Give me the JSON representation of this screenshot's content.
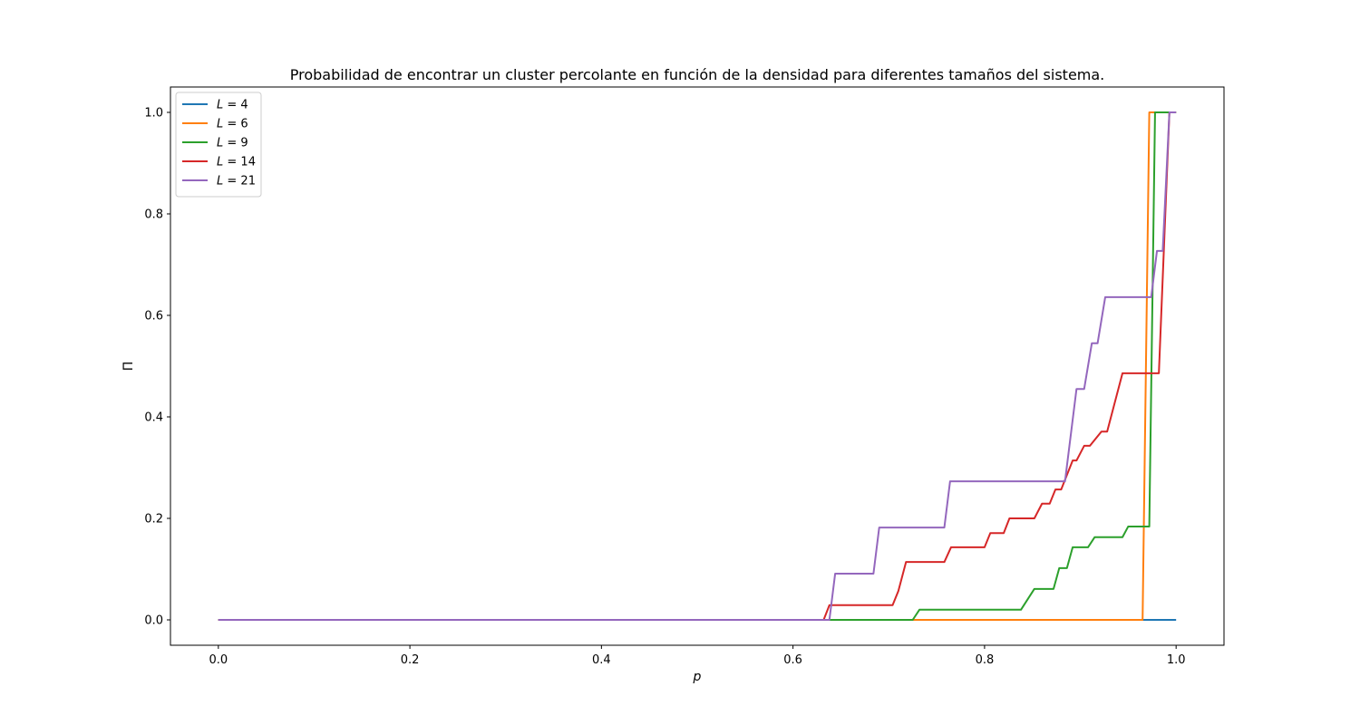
{
  "chart_data": {
    "type": "line",
    "title": "Probabilidad de encontrar un cluster percolante en función de la densidad para diferentes tamaños del sistema.",
    "xlabel": "p",
    "ylabel": "Π",
    "xlim": [
      -0.05,
      1.05
    ],
    "ylim": [
      -0.05,
      1.05
    ],
    "xticks": [
      0.0,
      0.2,
      0.4,
      0.6,
      0.8,
      1.0
    ],
    "xtick_labels": [
      "0.0",
      "0.2",
      "0.4",
      "0.6",
      "0.8",
      "1.0"
    ],
    "yticks": [
      0.0,
      0.2,
      0.4,
      0.6,
      0.8,
      1.0
    ],
    "ytick_labels": [
      "0.0",
      "0.2",
      "0.4",
      "0.6",
      "0.8",
      "1.0"
    ],
    "grid": false,
    "legend_position": "top-left",
    "series": [
      {
        "name": "L = 4",
        "label_var": "L",
        "label_num": "4",
        "color": "#1f77b4",
        "x": [
          0.0,
          1.0
        ],
        "y": [
          0.0,
          0.0
        ]
      },
      {
        "name": "L = 6",
        "label_var": "L",
        "label_num": "6",
        "color": "#ff7f0e",
        "x": [
          0.0,
          0.965,
          0.972,
          1.0
        ],
        "y": [
          0.0,
          0.0,
          1.0,
          1.0
        ]
      },
      {
        "name": "L = 9",
        "label_var": "L",
        "label_num": "9",
        "color": "#2ca02c",
        "x": [
          0.0,
          0.725,
          0.732,
          0.838,
          0.852,
          0.872,
          0.878,
          0.886,
          0.892,
          0.908,
          0.915,
          0.944,
          0.95,
          0.965,
          0.972,
          0.978,
          1.0
        ],
        "y": [
          0.0,
          0.0,
          0.02,
          0.02,
          0.061,
          0.061,
          0.102,
          0.102,
          0.143,
          0.143,
          0.163,
          0.163,
          0.184,
          0.184,
          0.184,
          1.0,
          1.0
        ],
        "color_note": ""
      },
      {
        "name": "L = 14",
        "label_var": "L",
        "label_num": "14",
        "color": "#d62728",
        "x": [
          0.0,
          0.632,
          0.638,
          0.704,
          0.71,
          0.718,
          0.758,
          0.765,
          0.8,
          0.806,
          0.82,
          0.826,
          0.836,
          0.852,
          0.86,
          0.868,
          0.874,
          0.88,
          0.892,
          0.896,
          0.904,
          0.91,
          0.922,
          0.928,
          0.944,
          0.954,
          0.982,
          0.993
        ],
        "y": [
          0.0,
          0.0,
          0.029,
          0.029,
          0.057,
          0.114,
          0.114,
          0.143,
          0.143,
          0.171,
          0.171,
          0.2,
          0.2,
          0.2,
          0.229,
          0.229,
          0.257,
          0.257,
          0.314,
          0.314,
          0.343,
          0.343,
          0.371,
          0.371,
          0.486,
          0.486,
          0.486,
          1.0
        ]
      },
      {
        "name": "L = 21",
        "label_var": "L",
        "label_num": "21",
        "color": "#9467bd",
        "x": [
          0.0,
          0.638,
          0.644,
          0.684,
          0.69,
          0.758,
          0.764,
          0.884,
          0.896,
          0.904,
          0.912,
          0.918,
          0.926,
          0.938,
          0.974,
          0.98,
          0.986,
          0.993,
          1.0
        ],
        "y": [
          0.0,
          0.0,
          0.091,
          0.091,
          0.182,
          0.182,
          0.273,
          0.273,
          0.455,
          0.455,
          0.545,
          0.545,
          0.636,
          0.636,
          0.636,
          0.727,
          0.727,
          1.0,
          1.0
        ]
      }
    ]
  }
}
